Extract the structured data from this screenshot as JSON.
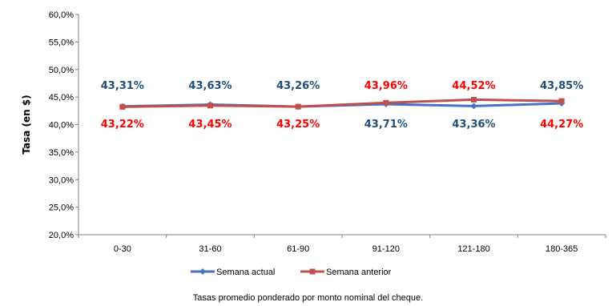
{
  "chart_data": {
    "type": "line",
    "categories": [
      "0-30",
      "31-60",
      "61-90",
      "91-120",
      "121-180",
      "180-365"
    ],
    "series": [
      {
        "name": "Semana actual",
        "color": "#4472C4",
        "label_color": "#1F4E79",
        "marker": "diamond",
        "values": [
          43.31,
          43.63,
          43.26,
          43.71,
          43.36,
          43.85
        ],
        "labels": [
          "43,31%",
          "43,63%",
          "43,26%",
          "43,71%",
          "43,36%",
          "43,85%"
        ]
      },
      {
        "name": "Semana anterior",
        "color": "#C0504D",
        "label_color": "#FF0000",
        "marker": "square",
        "values": [
          43.22,
          43.45,
          43.25,
          43.96,
          44.52,
          44.27
        ],
        "labels": [
          "43,22%",
          "43,45%",
          "43,25%",
          "43,96%",
          "44,52%",
          "44,27%"
        ]
      }
    ],
    "ylabel": "Tasa (en $)",
    "ylim": [
      20,
      60
    ],
    "yticks": [
      "20,0%",
      "25,0%",
      "30,0%",
      "35,0%",
      "40,0%",
      "45,0%",
      "50,0%",
      "55,0%",
      "60,0%"
    ],
    "grid": false,
    "legend": "bottom",
    "caption": "Tasas promedio ponderado por monto nominal del cheque."
  }
}
